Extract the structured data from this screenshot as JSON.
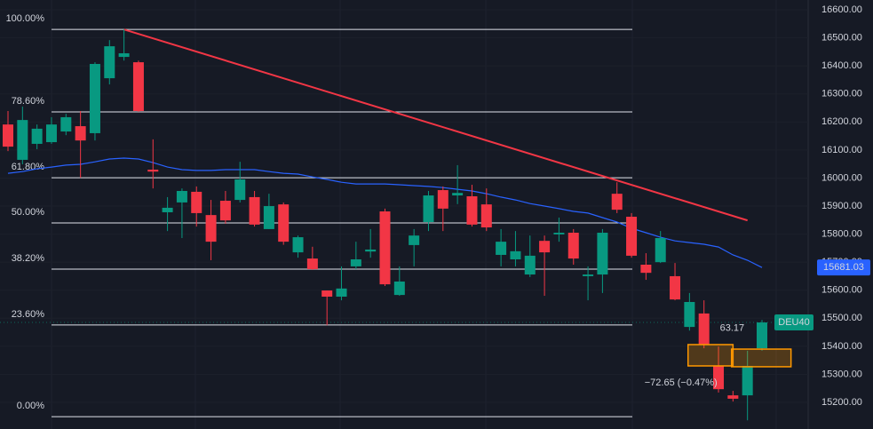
{
  "chart_data": {
    "type": "candlestick",
    "symbol": "DEU40",
    "ylim": [
      15105,
      16635
    ],
    "yticks": [
      {
        "value": 15200,
        "label": "15200.00"
      },
      {
        "value": 15300,
        "label": "15300.00"
      },
      {
        "value": 15400,
        "label": "15400.00"
      },
      {
        "value": 15500,
        "label": "15500.00"
      },
      {
        "value": 15600,
        "label": "15600.00"
      },
      {
        "value": 15700,
        "label": "15700.00"
      },
      {
        "value": 15800,
        "label": "15800.00"
      },
      {
        "value": 15900,
        "label": "15900.00"
      },
      {
        "value": 16000,
        "label": "16000.00"
      },
      {
        "value": 16100,
        "label": "16100.00"
      },
      {
        "value": 16200,
        "label": "16200.00"
      },
      {
        "value": 16300,
        "label": "16300.00"
      },
      {
        "value": 16400,
        "label": "16400.00"
      },
      {
        "value": 16500,
        "label": "16500.00"
      },
      {
        "value": 16600,
        "label": "16600.00"
      }
    ],
    "up_color": "#089981",
    "down_color": "#f23645",
    "open": [
      16191,
      16065,
      16122,
      16128,
      16166,
      16185,
      16160,
      16356,
      16432,
      16413,
      16030,
      15878,
      15913,
      15951,
      15868,
      15919,
      15922,
      15932,
      15818,
      15906,
      15735,
      15713,
      15599,
      15577,
      15685,
      15738,
      15881,
      15583,
      15761,
      15843,
      15957,
      15938,
      15935,
      15906,
      15726,
      15710,
      15656,
      15776,
      15799,
      15805,
      15650,
      15656,
      15944,
      15862,
      15691,
      15700,
      15650,
      15469,
      15517,
      15330,
      15225,
      15225,
      15393
    ],
    "high": [
      16239,
      16255,
      16191,
      16217,
      16229,
      16239,
      16413,
      16492,
      16530,
      16419,
      16138,
      15932,
      15963,
      15970,
      15922,
      15954,
      16058,
      15954,
      15944,
      15913,
      15795,
      15755,
      15599,
      15685,
      15773,
      15818,
      15891,
      15685,
      15818,
      15954,
      15970,
      16046,
      15976,
      15963,
      15818,
      15811,
      15795,
      15795,
      15859,
      15818,
      15685,
      15818,
      15985,
      15875,
      15732,
      15811,
      15697,
      15590,
      15564,
      15399,
      15241,
      15384,
      15494
    ],
    "low": [
      16096,
      16049,
      16103,
      16122,
      16153,
      16001,
      16134,
      16334,
      16419,
      16236,
      15963,
      15811,
      15786,
      15827,
      15707,
      15837,
      15913,
      15827,
      15818,
      15762,
      15716,
      15672,
      15475,
      15564,
      15675,
      15716,
      15615,
      15580,
      15685,
      15811,
      15811,
      15907,
      15827,
      15811,
      15685,
      15685,
      15647,
      15580,
      15773,
      15691,
      15564,
      15590,
      15875,
      15716,
      15637,
      15697,
      15564,
      15456,
      15393,
      15235,
      15203,
      15136,
      15384
    ],
    "close": [
      16112,
      16207,
      16176,
      16191,
      16217,
      16134,
      16407,
      16470,
      16445,
      16239,
      16023,
      15894,
      15954,
      15875,
      15773,
      15849,
      15995,
      15834,
      15900,
      15773,
      15789,
      15675,
      15577,
      15606,
      15710,
      15745,
      15621,
      15631,
      15795,
      15938,
      15891,
      15947,
      15834,
      15824,
      15773,
      15739,
      15723,
      15735,
      15805,
      15713,
      15656,
      15805,
      15887,
      15723,
      15662,
      15786,
      15567,
      15558,
      15406,
      15247,
      15213,
      15330,
      15485
    ],
    "ma": {
      "color": "#2962ff",
      "values": [
        16017,
        16023,
        16033,
        16039,
        16046,
        16049,
        16058,
        16068,
        16071,
        16068,
        16055,
        16039,
        16030,
        16027,
        16027,
        16030,
        16030,
        16030,
        16023,
        16017,
        16014,
        16004,
        15995,
        15985,
        15979,
        15979,
        15979,
        15976,
        15973,
        15970,
        15966,
        15960,
        15954,
        15944,
        15932,
        15922,
        15909,
        15900,
        15891,
        15881,
        15875,
        15859,
        15843,
        15821,
        15805,
        15789,
        15776,
        15770,
        15764,
        15754,
        15726,
        15707,
        15681.03
      ],
      "last_label": "15681.03"
    },
    "fib_levels": [
      {
        "label": "100.00%",
        "price": 16530
      },
      {
        "label": "78.60%",
        "price": 16236
      },
      {
        "label": "61.80%",
        "price": 16001
      },
      {
        "label": "50.00%",
        "price": 15840
      },
      {
        "label": "38.20%",
        "price": 15675
      },
      {
        "label": "23.60%",
        "price": 15476
      },
      {
        "label": "0.00%",
        "price": 15149
      }
    ],
    "trendline": {
      "color": "#f23645",
      "start_index": 8,
      "start": 16530,
      "end_index": 51,
      "end": 15849
    },
    "boxes": [
      {
        "start_index": 46.9,
        "end_index": 50,
        "top": 15406,
        "bottom": 15330
      },
      {
        "start_index": 49.9,
        "end_index": 54,
        "top": 15390,
        "bottom": 15327
      }
    ],
    "annotations": [
      {
        "text": "63.17",
        "price": 15465,
        "index": 49.1
      },
      {
        "text": "−72.65 (−0.47%)",
        "price": 15270,
        "index": 43.9
      }
    ]
  }
}
